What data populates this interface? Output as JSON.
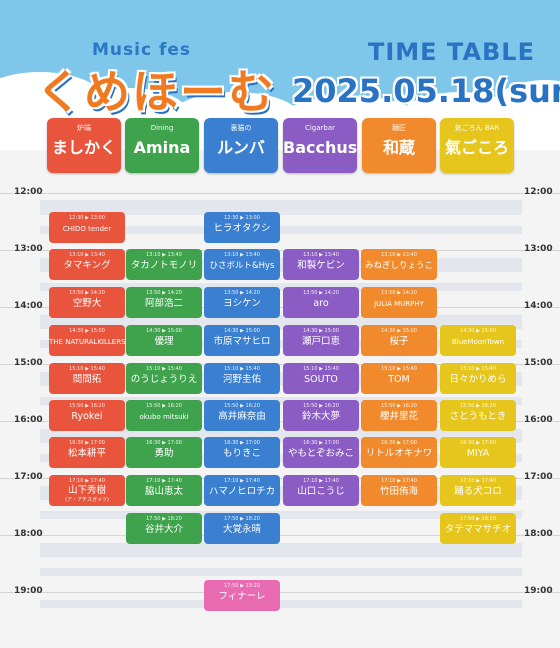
{
  "header": {
    "logo_sub": "Music fes",
    "logo_main": "くめほーむ",
    "title": "TIME TABLE",
    "date": "2025.05.18(sun)"
  },
  "colors": {
    "sky": "#7ec7ea",
    "accent_blue": "#2a73c4",
    "logo_orange": "#f07a22"
  },
  "stages": [
    {
      "sub": "炉端",
      "name": "ましかく",
      "color": "#e8543c"
    },
    {
      "sub": "Dining",
      "name": "Amina",
      "color": "#3fa34d"
    },
    {
      "sub": "裏猫の",
      "name": "ルンバ",
      "color": "#3a7fd0"
    },
    {
      "sub": "Cigarbar",
      "name": "Bacchus",
      "color": "#8a5cc4"
    },
    {
      "sub": "麺匠",
      "name": "和蔵",
      "color": "#f08a2c"
    },
    {
      "sub": "気ごろん BAR",
      "name": "氣ごころ",
      "color": "#e6c51c"
    }
  ],
  "hours": [
    "12:00",
    "13:00",
    "14:00",
    "15:00",
    "16:00",
    "17:00",
    "18:00",
    "19:00"
  ],
  "performances": [
    {
      "stage": 0,
      "row": 0,
      "time": "12:30 ▶ 13:00",
      "name": "CHIDO tender"
    },
    {
      "stage": 2,
      "row": 0,
      "time": "12:30 ▶ 13:00",
      "name": "ヒラオタクシ"
    },
    {
      "stage": 0,
      "row": 1,
      "time": "13:10 ▶ 13:40",
      "name": "タマキング"
    },
    {
      "stage": 1,
      "row": 1,
      "time": "13:10 ▶ 13:40",
      "name": "タカノトモノリ"
    },
    {
      "stage": 2,
      "row": 1,
      "time": "13:10 ▶ 13:40",
      "name": "ひさボルト&Hys"
    },
    {
      "stage": 3,
      "row": 1,
      "time": "13:10 ▶ 13:40",
      "name": "和製ケビン"
    },
    {
      "stage": 4,
      "row": 1,
      "time": "13:10 ▶ 13:40",
      "name": "みねぎしりょうこ"
    },
    {
      "stage": 0,
      "row": 2,
      "time": "13:50 ▶ 14:20",
      "name": "空野大"
    },
    {
      "stage": 1,
      "row": 2,
      "time": "13:50 ▶ 14:20",
      "name": "阿部浩二"
    },
    {
      "stage": 2,
      "row": 2,
      "time": "13:50 ▶ 14:20",
      "name": "ヨシケン"
    },
    {
      "stage": 3,
      "row": 2,
      "time": "13:50 ▶ 14:20",
      "name": "aro"
    },
    {
      "stage": 4,
      "row": 2,
      "time": "13:50 ▶ 14:20",
      "name": "JULiA MURPHY"
    },
    {
      "stage": 0,
      "row": 3,
      "time": "14:30 ▶ 15:00",
      "name": "THE NATURALKILLERS"
    },
    {
      "stage": 1,
      "row": 3,
      "time": "14:30 ▶ 15:00",
      "name": "優理"
    },
    {
      "stage": 2,
      "row": 3,
      "time": "14:30 ▶ 15:00",
      "name": "市原マサヒロ"
    },
    {
      "stage": 3,
      "row": 3,
      "time": "14:30 ▶ 15:00",
      "name": "瀬戸口恵"
    },
    {
      "stage": 4,
      "row": 3,
      "time": "14:30 ▶ 15:00",
      "name": "桜子"
    },
    {
      "stage": 5,
      "row": 3,
      "time": "14:30 ▶ 15:00",
      "name": "BlueMoonTown"
    },
    {
      "stage": 0,
      "row": 4,
      "time": "15:10 ▶ 15:40",
      "name": "間間拓"
    },
    {
      "stage": 1,
      "row": 4,
      "time": "15:10 ▶ 15:40",
      "name": "のうじょうりえ"
    },
    {
      "stage": 2,
      "row": 4,
      "time": "15:10 ▶ 15:40",
      "name": "河野圭佑"
    },
    {
      "stage": 3,
      "row": 4,
      "time": "15:10 ▶ 15:40",
      "name": "SOUTO"
    },
    {
      "stage": 4,
      "row": 4,
      "time": "15:10 ▶ 15:40",
      "name": "TOM"
    },
    {
      "stage": 5,
      "row": 4,
      "time": "15:10 ▶ 15:40",
      "name": "日々かりめら"
    },
    {
      "stage": 0,
      "row": 5,
      "time": "15:50 ▶ 16:20",
      "name": "Ryokei"
    },
    {
      "stage": 1,
      "row": 5,
      "time": "15:50 ▶ 16:20",
      "name": "okubo mitsuki"
    },
    {
      "stage": 2,
      "row": 5,
      "time": "15:50 ▶ 16:20",
      "name": "高井麻奈由"
    },
    {
      "stage": 3,
      "row": 5,
      "time": "15:50 ▶ 16:20",
      "name": "鈴木大夢"
    },
    {
      "stage": 4,
      "row": 5,
      "time": "15:50 ▶ 16:20",
      "name": "櫻井里花"
    },
    {
      "stage": 5,
      "row": 5,
      "time": "15:50 ▶ 16:20",
      "name": "さとうもとき"
    },
    {
      "stage": 0,
      "row": 6,
      "time": "16:30 ▶ 17:00",
      "name": "松本耕平"
    },
    {
      "stage": 1,
      "row": 6,
      "time": "16:30 ▶ 17:00",
      "name": "勇助"
    },
    {
      "stage": 2,
      "row": 6,
      "time": "16:30 ▶ 17:00",
      "name": "もりきこ"
    },
    {
      "stage": 3,
      "row": 6,
      "time": "16:30 ▶ 17:00",
      "name": "やもとぞおみこ"
    },
    {
      "stage": 4,
      "row": 6,
      "time": "16:30 ▶ 17:00",
      "name": "リトルオキナワ"
    },
    {
      "stage": 5,
      "row": 6,
      "time": "16:30 ▶ 17:00",
      "name": "MIYA"
    },
    {
      "stage": 0,
      "row": 7,
      "time": "17:10 ▶ 17:40",
      "name": "山下秀樹",
      "note": "(ア・アチスガッツ)"
    },
    {
      "stage": 1,
      "row": 7,
      "time": "17:10 ▶ 17:40",
      "name": "脇山恵太"
    },
    {
      "stage": 2,
      "row": 7,
      "time": "17:10 ▶ 17:40",
      "name": "ハマノヒロチカ"
    },
    {
      "stage": 3,
      "row": 7,
      "time": "17:10 ▶ 17:40",
      "name": "山口こうじ"
    },
    {
      "stage": 4,
      "row": 7,
      "time": "17:10 ▶ 17:40",
      "name": "竹田侑海"
    },
    {
      "stage": 5,
      "row": 7,
      "time": "17:10 ▶ 17:40",
      "name": "踊る犬コロ"
    },
    {
      "stage": 1,
      "row": 8,
      "time": "17:50 ▶ 18:20",
      "name": "谷井大介"
    },
    {
      "stage": 2,
      "row": 8,
      "time": "17:50 ▶ 18:20",
      "name": "大覚永晴"
    },
    {
      "stage": 5,
      "row": 8,
      "time": "17:50 ▶ 18:20",
      "name": "タテママサチオ"
    },
    {
      "stage": 2,
      "row": 9,
      "time": "17:50 ▶ 19:20",
      "name": "フィナーレ",
      "color": "#e86ab0"
    }
  ]
}
